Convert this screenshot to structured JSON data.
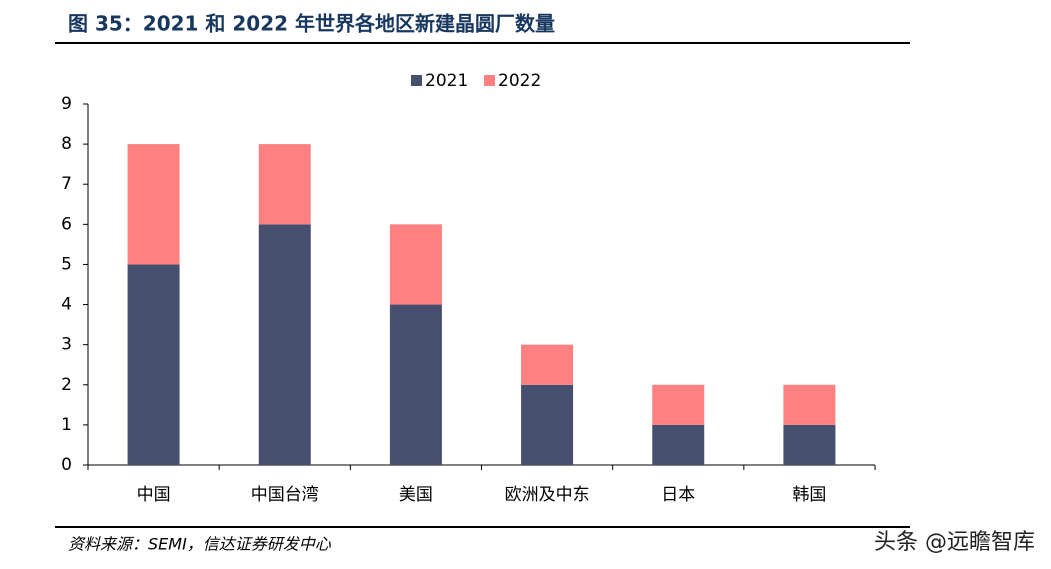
{
  "chart_data": {
    "type": "stacked-bar",
    "title": "图 35：2021 和 2022 年世界各地区新建晶圆厂数量",
    "categories": [
      "中国",
      "中国台湾",
      "美国",
      "欧洲及中东",
      "日本",
      "韩国"
    ],
    "series": [
      {
        "name": "2021",
        "color": "#46506e",
        "values": [
          5,
          6,
          4,
          2,
          1,
          1
        ]
      },
      {
        "name": "2022",
        "color": "#ff8080",
        "values": [
          3,
          2,
          2,
          1,
          1,
          1
        ]
      }
    ],
    "ylim": [
      0,
      9
    ],
    "yticks": [
      0,
      1,
      2,
      3,
      4,
      5,
      6,
      7,
      8,
      9
    ],
    "legend": "top",
    "source": "资料来源：SEMI，信达证券研发中心",
    "watermark": "头条 @远瞻智库"
  }
}
